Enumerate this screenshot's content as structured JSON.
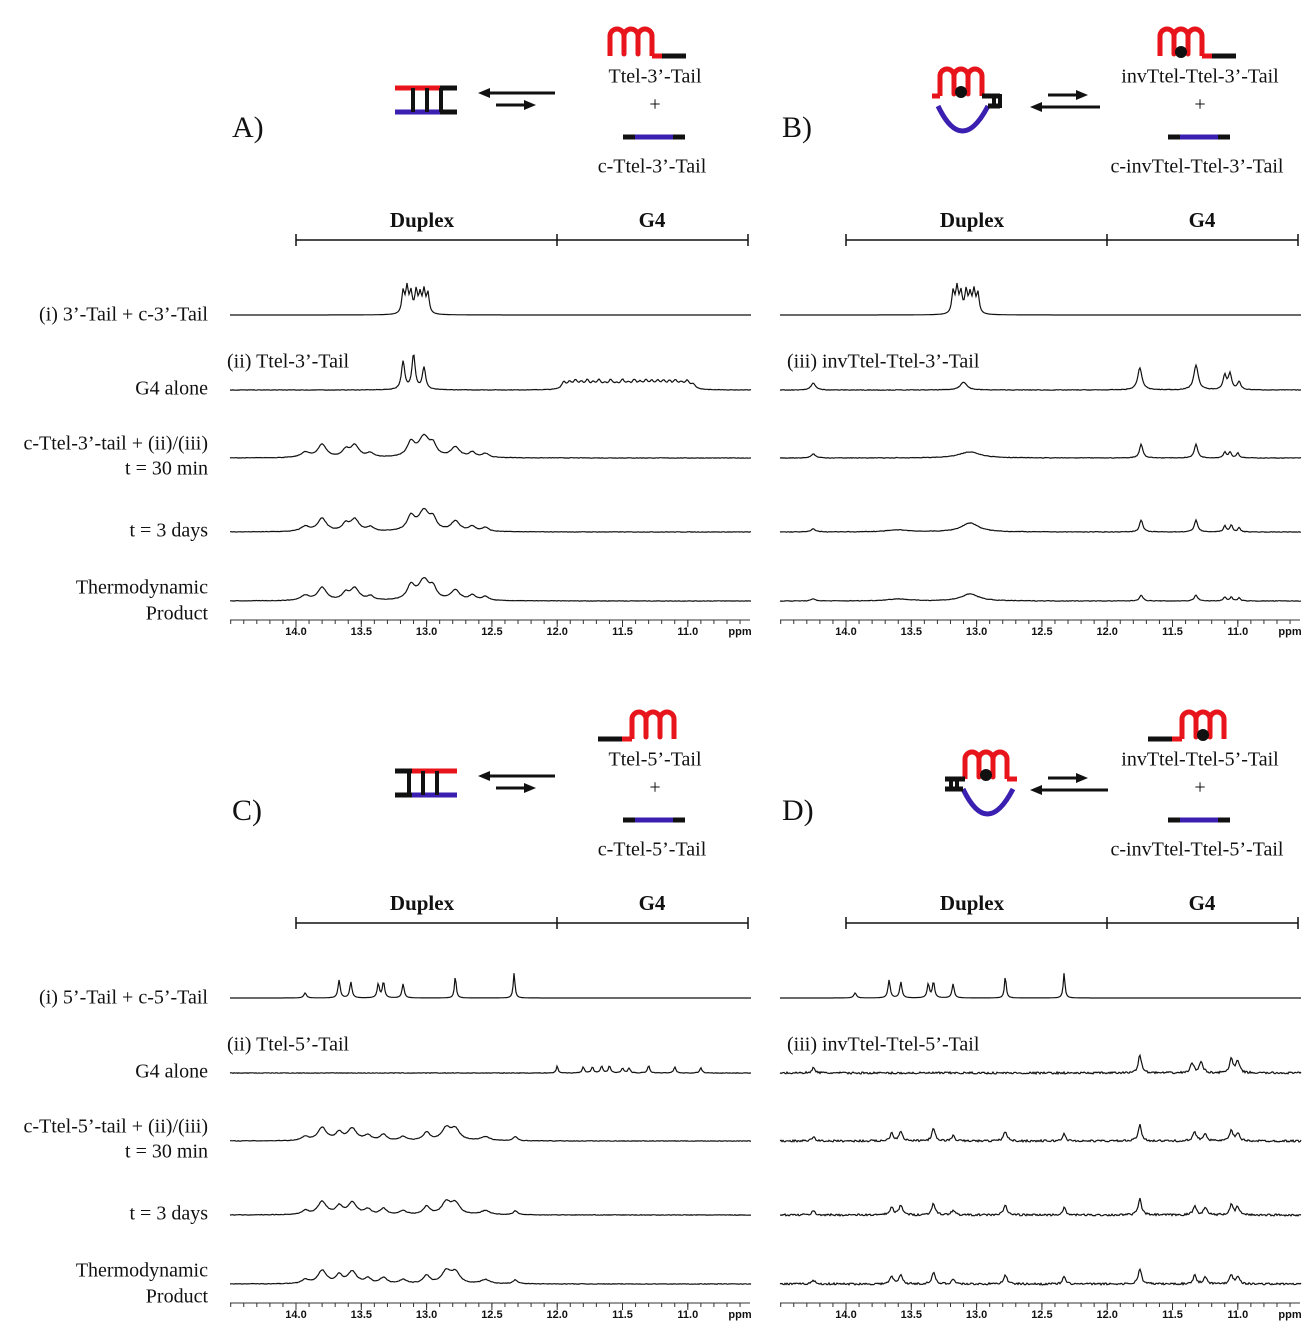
{
  "panels": [
    {
      "label": "A)",
      "species": {
        "top": "Ttel-3’-Tail",
        "plus": "+",
        "bottom": "c-Ttel-3’-Tail"
      },
      "regions": {
        "duplex": "Duplex",
        "g4": "G4"
      },
      "inline_label": "(ii) Ttel-3’-Tail",
      "row_labels": [
        "(i) 3’-Tail + c-3’-Tail",
        "G4 alone",
        "c-Ttel-3’-tail + (ii)/(iii)",
        "t = 30 min",
        "t = 3 days",
        "Thermodynamic",
        "Product"
      ],
      "axis": {
        "ticks": [
          "14.0",
          "13.5",
          "13.0",
          "12.5",
          "12.0",
          "11.5",
          "11.0"
        ],
        "unit": "ppm"
      }
    },
    {
      "label": "B)",
      "species": {
        "top": "invTtel-Ttel-3’-Tail",
        "plus": "+",
        "bottom": "c-invTtel-Ttel-3’-Tail"
      },
      "regions": {
        "duplex": "Duplex",
        "g4": "G4"
      },
      "inline_label": "(iii) invTtel-Ttel-3’-Tail",
      "axis": {
        "ticks": [
          "14.0",
          "13.5",
          "13.0",
          "12.5",
          "12.0",
          "11.5",
          "11.0"
        ],
        "unit": "ppm"
      }
    },
    {
      "label": "C)",
      "species": {
        "top": "Ttel-5’-Tail",
        "plus": "+",
        "bottom": "c-Ttel-5’-Tail"
      },
      "regions": {
        "duplex": "Duplex",
        "g4": "G4"
      },
      "inline_label": "(ii) Ttel-5’-Tail",
      "row_labels": [
        "(i) 5’-Tail + c-5’-Tail",
        "G4 alone",
        "c-Ttel-5’-tail + (ii)/(iii)",
        "t = 30 min",
        "t = 3 days",
        "Thermodynamic",
        "Product"
      ],
      "axis": {
        "ticks": [
          "14.0",
          "13.5",
          "13.0",
          "12.5",
          "12.0",
          "11.5",
          "11.0"
        ],
        "unit": "ppm"
      }
    },
    {
      "label": "D)",
      "species": {
        "top": "invTtel-Ttel-5’-Tail",
        "plus": "+",
        "bottom": "c-invTtel-Ttel-5’-Tail"
      },
      "regions": {
        "duplex": "Duplex",
        "g4": "G4"
      },
      "inline_label": "(iii) invTtel-Ttel-5’-Tail",
      "axis": {
        "ticks": [
          "14.0",
          "13.5",
          "13.0",
          "12.5",
          "12.0",
          "11.5",
          "11.0"
        ],
        "unit": "ppm"
      }
    }
  ]
}
